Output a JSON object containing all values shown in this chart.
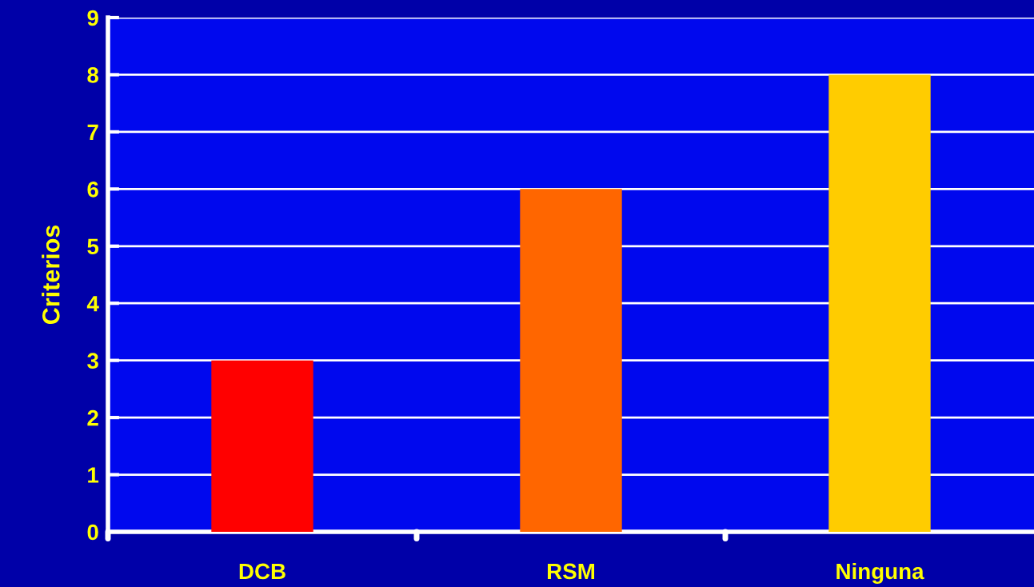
{
  "chart_data": {
    "type": "bar",
    "ylabel": "Criterios",
    "categories": [
      "DCB",
      "RSM",
      "Ninguna"
    ],
    "values": [
      3,
      6,
      8
    ],
    "colors": [
      "#ff0000",
      "#ff6600",
      "#ffcc00"
    ],
    "ylim": [
      0,
      9
    ],
    "yticks": [
      0,
      1,
      2,
      3,
      4,
      5,
      6,
      7,
      8,
      9
    ],
    "grid": "y"
  }
}
